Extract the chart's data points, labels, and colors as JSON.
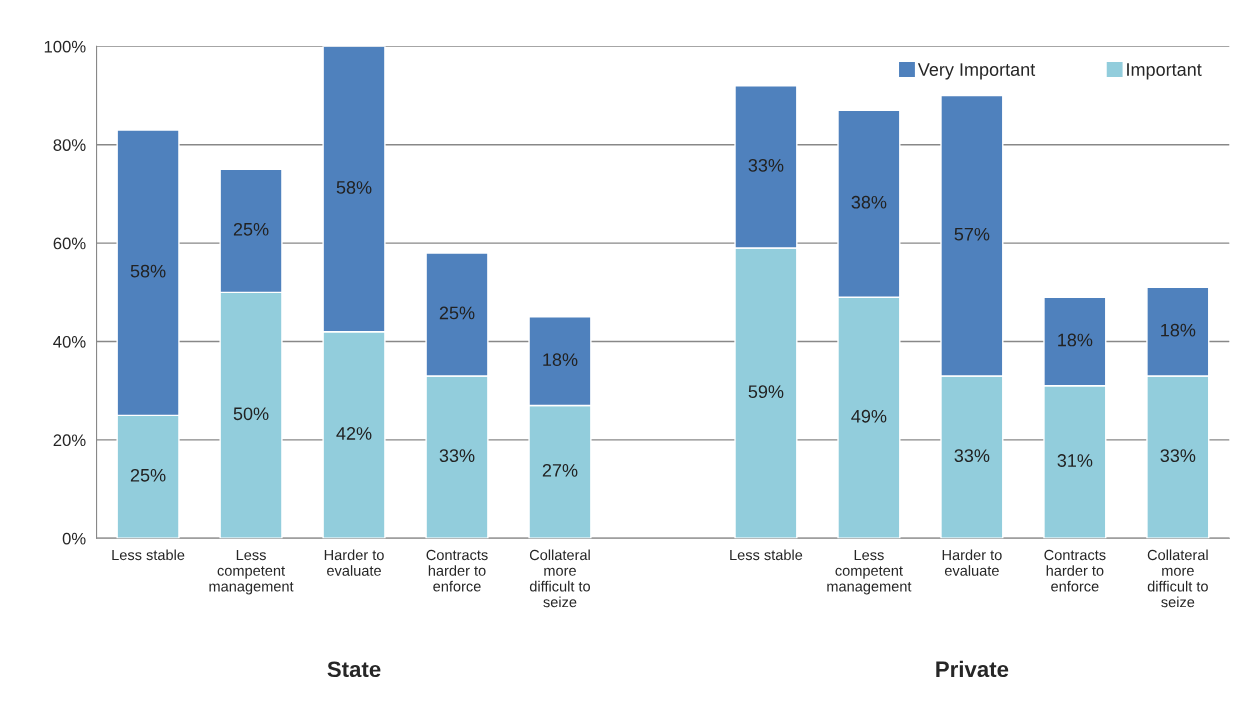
{
  "chart_data": {
    "type": "bar",
    "stacked": true,
    "categories": [
      "Less stable",
      "Less\ncompetent\nmanagement",
      "Harder to\nevaluate",
      "Contracts\nharder to\nenforce",
      "Collateral\nmore\ndifficult to\nseize",
      null,
      "Less stable",
      "Less\ncompetent\nmanagement",
      "Harder to\nevaluate",
      "Contracts\nharder to\nenforce",
      "Collateral\nmore\ndifficult to\nseize"
    ],
    "series": [
      {
        "name": "Important",
        "color": "#92cddc",
        "values": [
          25,
          50,
          42,
          33,
          27,
          null,
          59,
          49,
          33,
          31,
          33
        ],
        "value_labels": [
          "25%",
          "50%",
          "42%",
          "33%",
          "27%",
          null,
          "59%",
          "49%",
          "33%",
          "31%",
          "33%"
        ]
      },
      {
        "name": "Very Important",
        "color": "#4f81bd",
        "values": [
          58,
          25,
          58,
          25,
          18,
          null,
          33,
          38,
          57,
          18,
          18
        ],
        "value_labels": [
          "58%",
          "25%",
          "58%",
          "25%",
          "18%",
          null,
          "33%",
          "38%",
          "57%",
          "18%",
          "18%"
        ]
      }
    ],
    "ylim": [
      0,
      100
    ],
    "yticks": [
      {
        "value": 0,
        "label": "0%"
      },
      {
        "value": 20,
        "label": "20%"
      },
      {
        "value": 40,
        "label": "40%"
      },
      {
        "value": 60,
        "label": "60%"
      },
      {
        "value": 80,
        "label": "80%"
      },
      {
        "value": 100,
        "label": "100%"
      }
    ],
    "grid": "y",
    "legend": "top right",
    "annotations": [
      "State",
      "Private"
    ]
  }
}
